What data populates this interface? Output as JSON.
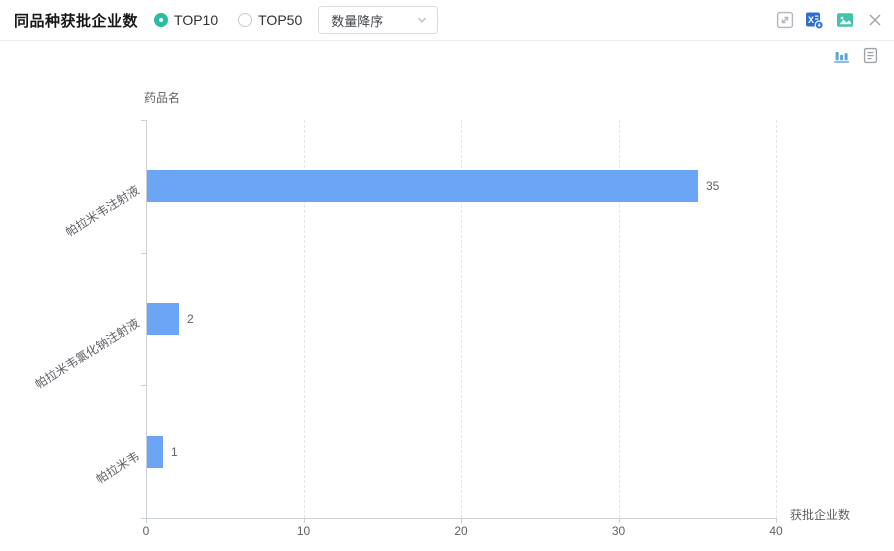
{
  "header": {
    "title": "同品种获批企业数",
    "radio_group": [
      {
        "label": "TOP10",
        "selected": true
      },
      {
        "label": "TOP50",
        "selected": false
      }
    ],
    "sort_select": {
      "value": "数量降序",
      "icon": "chevron-down-icon"
    },
    "action_icons": [
      {
        "name": "expand-icon"
      },
      {
        "name": "excel-export-icon"
      },
      {
        "name": "save-image-icon"
      },
      {
        "name": "close-icon"
      }
    ]
  },
  "view_toggle": [
    {
      "name": "bar-chart-view-icon",
      "active": true
    },
    {
      "name": "table-view-icon",
      "active": false
    }
  ],
  "chart_data": {
    "type": "bar",
    "orientation": "horizontal",
    "categories": [
      "帕拉米韦注射液",
      "帕拉米韦氯化钠注射液",
      "帕拉米韦"
    ],
    "values": [
      35,
      2,
      1
    ],
    "value_labels": [
      "35",
      "2",
      "1"
    ],
    "xlabel": "获批企业数",
    "ylabel": "药品名",
    "xlim": [
      0,
      40
    ],
    "xticks": [
      0,
      10,
      20,
      30,
      40
    ],
    "grid": "dashed-vertical",
    "legend": "none",
    "bar_color": "#6CA5F6"
  },
  "colors": {
    "accent_teal": "#29BDA0",
    "bar_blue": "#6CA5F6",
    "excel_blue": "#2E6ED2",
    "image_teal": "#3FC4AB",
    "chart_icon_blue": "#58A5DA",
    "axis_text": "#5E6166"
  }
}
